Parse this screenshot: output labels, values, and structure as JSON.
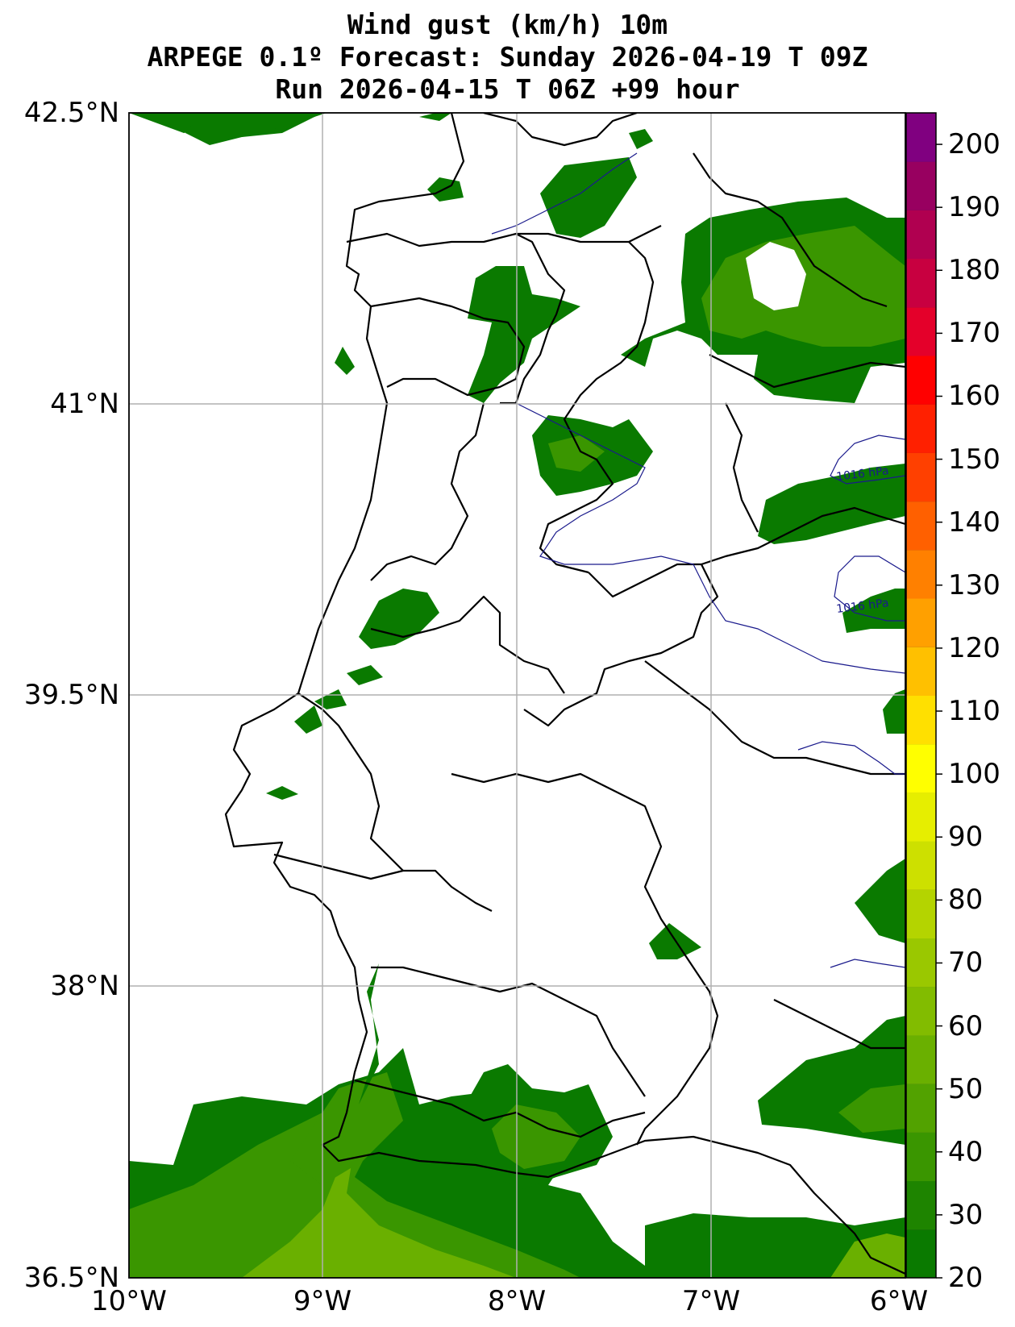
{
  "title": {
    "line1": "Wind gust (km/h) 10m",
    "line2": "ARPEGE 0.1º Forecast: Sunday 2026-04-19 T 09Z",
    "line3": "Run 2026-04-15 T 06Z +99 hour"
  },
  "map": {
    "lat_labels": [
      "42.5°N",
      "41°N",
      "39.5°N",
      "38°N",
      "36.5°N"
    ],
    "lon_labels": [
      "10°W",
      "9°W",
      "8°W",
      "7°W",
      "6°W"
    ],
    "isobar_labels": [
      "1016 hPa",
      "1016 hPa"
    ],
    "colors": {
      "gust_20_30": "#0a7a00",
      "gust_30_40": "#3a9600",
      "gust_40_50": "#6ab000",
      "gust_50_60": "#9ac800",
      "coast_border": "#000000",
      "isobar": "#1a1a8c",
      "grid": "#b0b0b0"
    }
  },
  "colorbar": {
    "tick_labels": [
      "200",
      "190",
      "180",
      "170",
      "160",
      "150",
      "140",
      "130",
      "120",
      "110",
      "100",
      "90",
      "80",
      "70",
      "60",
      "50",
      "40",
      "30",
      "20"
    ],
    "min": 20,
    "max": 205,
    "colors": [
      "#0a7a00",
      "#1e8400",
      "#3a9600",
      "#52a200",
      "#6ab000",
      "#82bc00",
      "#9ac800",
      "#b4d400",
      "#cde000",
      "#e6ee00",
      "#ffff00",
      "#ffe000",
      "#ffc000",
      "#ffa000",
      "#ff8000",
      "#ff6000",
      "#ff4000",
      "#ff2000",
      "#ff0000",
      "#e4002a",
      "#c80040",
      "#b00050",
      "#980060",
      "#800080"
    ]
  }
}
